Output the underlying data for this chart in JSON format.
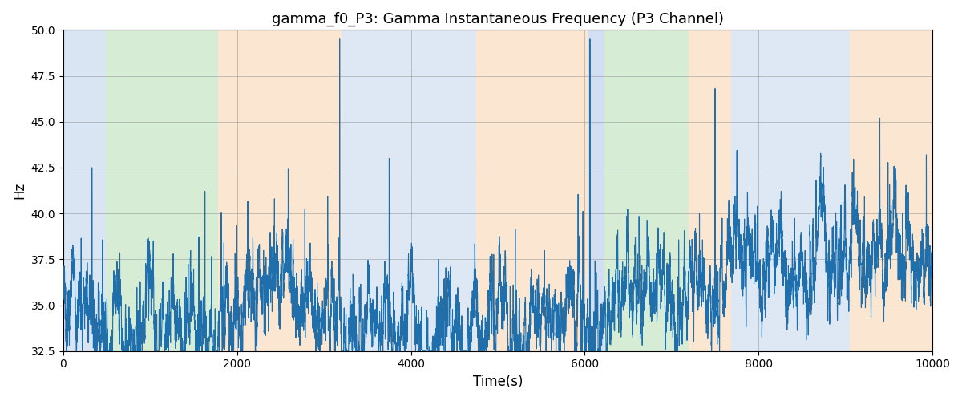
{
  "title": "gamma_f0_P3: Gamma Instantaneous Frequency (P3 Channel)",
  "xlabel": "Time(s)",
  "ylabel": "Hz",
  "xlim": [
    0,
    10000
  ],
  "ylim": [
    32.5,
    50.0
  ],
  "yticks": [
    32.5,
    35.0,
    37.5,
    40.0,
    42.5,
    45.0,
    47.5,
    50.0
  ],
  "xticks": [
    0,
    2000,
    4000,
    6000,
    8000,
    10000
  ],
  "figsize": [
    12.0,
    5.0
  ],
  "dpi": 100,
  "line_color": "#1f6fad",
  "line_width": 0.8,
  "background_regions": [
    {
      "start": 0,
      "end": 490,
      "color": "#aec6e8",
      "alpha": 0.45
    },
    {
      "start": 490,
      "end": 1780,
      "color": "#a8d5a2",
      "alpha": 0.45
    },
    {
      "start": 1780,
      "end": 3200,
      "color": "#f5c99a",
      "alpha": 0.45
    },
    {
      "start": 3200,
      "end": 4750,
      "color": "#aec6e8",
      "alpha": 0.4
    },
    {
      "start": 4750,
      "end": 6030,
      "color": "#f5c99a",
      "alpha": 0.45
    },
    {
      "start": 6030,
      "end": 6230,
      "color": "#aec6e8",
      "alpha": 0.55
    },
    {
      "start": 6230,
      "end": 7200,
      "color": "#a8d5a2",
      "alpha": 0.45
    },
    {
      "start": 7200,
      "end": 7680,
      "color": "#f5c99a",
      "alpha": 0.45
    },
    {
      "start": 7680,
      "end": 9050,
      "color": "#aec6e8",
      "alpha": 0.4
    },
    {
      "start": 9050,
      "end": 10100,
      "color": "#f5c99a",
      "alpha": 0.45
    }
  ]
}
